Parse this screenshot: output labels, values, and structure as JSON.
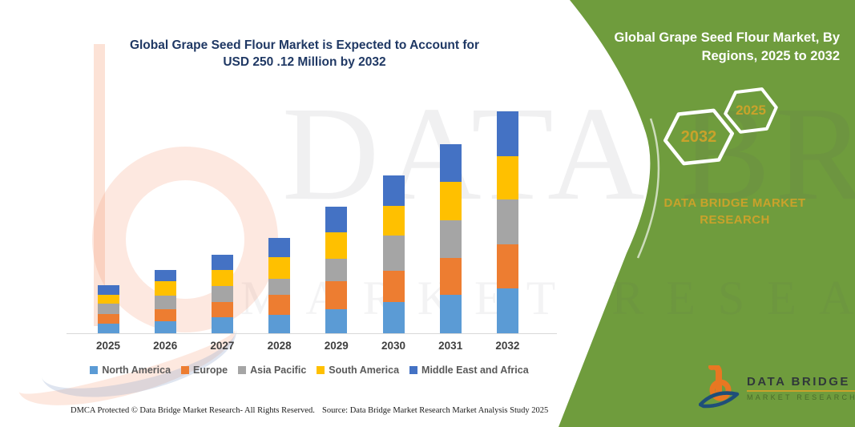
{
  "left": {
    "title_line1": "Global Grape Seed Flour Market is Expected to Account for",
    "title_line2": "USD 250 .12 Million by 2032",
    "footer_dmca": "DMCA Protected © Data Bridge Market Research-  All Rights Reserved.",
    "footer_source": "Source: Data Bridge Market Research  Market Analysis Study 2025"
  },
  "right_panel": {
    "title_line1": "Global Grape Seed Flour Market, By",
    "title_line2": "Regions, 2025 to 2032",
    "hexagon_year_top": "2025",
    "hexagon_year_bottom": "2032",
    "brand_line1": "DATA BRIDGE MARKET",
    "brand_line2": "RESEARCH",
    "bg_color": "#6f9c3d",
    "accent_gold": "#c9a22b"
  },
  "logo": {
    "name": "DATA BRIDGE",
    "subtitle": "MARKET RESEARCH"
  },
  "watermark": {
    "line1": "DATA BRI",
    "line2": "MARKET RESEARCH"
  },
  "chart_data": {
    "type": "bar",
    "stacked": true,
    "title": "Global Grape Seed Flour Market is Expected to Account for USD 250 .12 Million by 2032",
    "unit": "USD Million",
    "grid": false,
    "legend_position": "bottom",
    "categories": [
      "2025",
      "2026",
      "2027",
      "2028",
      "2029",
      "2030",
      "2031",
      "2032"
    ],
    "series": [
      {
        "name": "North America",
        "color": "#5B9BD5",
        "values": [
          10.6,
          13.8,
          18.1,
          21.1,
          27.1,
          35.5,
          43.1,
          50.6
        ]
      },
      {
        "name": "Europe",
        "color": "#ED7D31",
        "values": [
          11.4,
          13.3,
          17.4,
          22.1,
          31.9,
          34.7,
          42.2,
          49.8
        ]
      },
      {
        "name": "Asia Pacific",
        "color": "#A5A5A5",
        "values": [
          11.5,
          15.1,
          17.5,
          18.6,
          25.3,
          39.8,
          42.5,
          50.6
        ]
      },
      {
        "name": "South America",
        "color": "#FFC000",
        "values": [
          9.7,
          16.9,
          18.1,
          24.4,
          29.6,
          34.0,
          43.4,
          48.8
        ]
      },
      {
        "name": "Middle East and Africa",
        "color": "#4472C4",
        "values": [
          11.1,
          12.7,
          17.7,
          21.2,
          29.2,
          34.1,
          42.5,
          50.3
        ]
      }
    ],
    "totals": [
      54.3,
      71.8,
      88.8,
      107.4,
      143.1,
      178.1,
      213.7,
      250.1
    ],
    "ylim": [
      0,
      260
    ]
  }
}
